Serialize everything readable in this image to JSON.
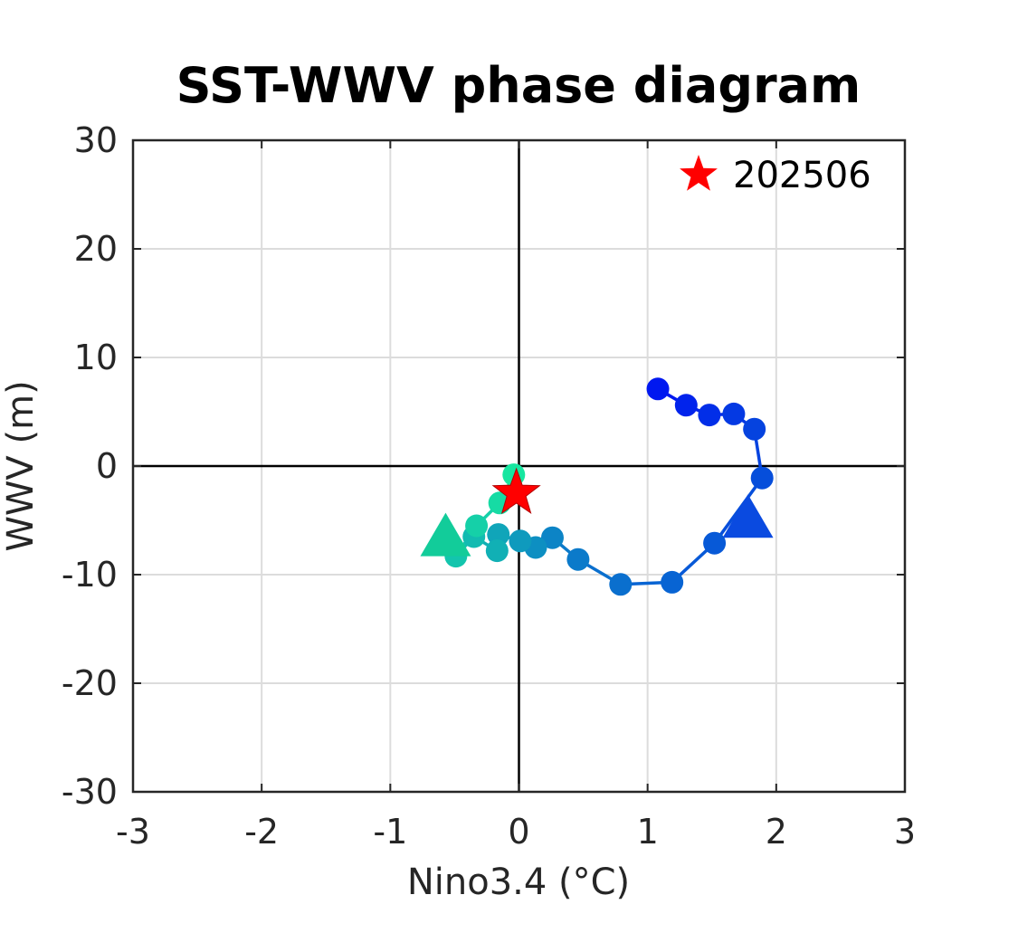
{
  "chart_data": {
    "type": "line",
    "title": "SST-WWV phase diagram",
    "xlabel": "Nino3.4 (°C)",
    "ylabel": "WWV (m)",
    "xlim": [
      -3,
      3
    ],
    "ylim": [
      -30,
      30
    ],
    "xticks": [
      -3,
      -2,
      -1,
      0,
      1,
      2,
      3
    ],
    "yticks": [
      -30,
      -20,
      -10,
      0,
      10,
      20,
      30
    ],
    "xtick_labels": [
      "-3",
      "-2",
      "-1",
      "0",
      "1",
      "2",
      "3"
    ],
    "ytick_labels": [
      "-30",
      "-20",
      "-10",
      "0",
      "10",
      "20",
      "30"
    ],
    "grid": true,
    "zero_lines": true,
    "legend": {
      "label": "202506",
      "placement": "top-right",
      "marker": "star",
      "color": "#ff0000"
    },
    "series": [
      {
        "x": [
          1.08,
          1.3,
          1.48,
          1.67,
          1.83,
          1.89,
          1.52,
          1.19,
          0.79,
          0.46,
          0.26,
          0.13,
          0.01,
          -0.16,
          -0.17,
          -0.35,
          -0.49,
          -0.33,
          -0.15,
          -0.04
        ],
        "y": [
          7.1,
          5.6,
          4.7,
          4.8,
          3.4,
          -1.1,
          -7.1,
          -10.7,
          -10.9,
          -8.6,
          -6.6,
          -7.5,
          -6.9,
          -6.3,
          -7.8,
          -6.5,
          -8.3,
          -5.5,
          -3.4,
          -0.8
        ],
        "marker": "circle",
        "color_start": "#0018f0",
        "color_end": "#17e6a0"
      }
    ],
    "triangles": [
      {
        "x": 1.78,
        "y": -5.0,
        "color": "#0a4ae0"
      },
      {
        "x": -0.57,
        "y": -6.7,
        "color": "#12cc9a"
      }
    ],
    "current": {
      "x": -0.02,
      "y": -2.5,
      "color": "#ff0000"
    }
  }
}
